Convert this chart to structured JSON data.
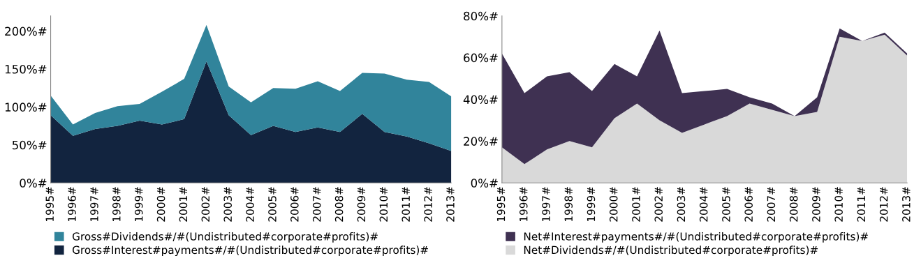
{
  "chart_data": [
    {
      "type": "area",
      "stacked": true,
      "legend": "bottom",
      "grid": false,
      "categories": [
        "1995#",
        "1996#",
        "1997#",
        "1998#",
        "1999#",
        "2000#",
        "2001#",
        "2002#",
        "2003#",
        "2004#",
        "2005#",
        "2006#",
        "2007#",
        "2008#",
        "2009#",
        "2010#",
        "2011#",
        "2012#",
        "2013#"
      ],
      "ylim": [
        0,
        220
      ],
      "yticks": [
        {
          "value": 0,
          "label": "0%#"
        },
        {
          "value": 50,
          "label": "50%#"
        },
        {
          "value": 100,
          "label": "100%#"
        },
        {
          "value": 150,
          "label": "150%#"
        },
        {
          "value": 200,
          "label": "200%#"
        }
      ],
      "series": [
        {
          "name": "Gross#Interest#payments#/#(Undistributed#corporate#profits)#",
          "color": "#12243f",
          "values": [
            89,
            62,
            71,
            75,
            82,
            77,
            84,
            160,
            89,
            63,
            75,
            67,
            73,
            67,
            91,
            67,
            61,
            52,
            42
          ]
        },
        {
          "name": "Gross#Dividends#/#(Undistributed#corporate#profits)#",
          "color": "#31849b",
          "values": [
            26,
            15,
            21,
            26,
            22,
            43,
            53,
            48,
            38,
            43,
            50,
            57,
            61,
            54,
            54,
            77,
            75,
            81,
            72
          ]
        }
      ]
    },
    {
      "type": "area",
      "stacked": true,
      "legend": "bottom",
      "grid": false,
      "categories": [
        "1995#",
        "1996#",
        "1997#",
        "1998#",
        "1999#",
        "2000#",
        "2001#",
        "2002#",
        "2003#",
        "2004#",
        "2005#",
        "2006#",
        "2007#",
        "2008#",
        "2009#",
        "2010#",
        "2011#",
        "2012#",
        "2013#"
      ],
      "ylim": [
        0,
        80
      ],
      "yticks": [
        {
          "value": 0,
          "label": "0%#"
        },
        {
          "value": 20,
          "label": "20%#"
        },
        {
          "value": 40,
          "label": "40%#"
        },
        {
          "value": 60,
          "label": "60%#"
        },
        {
          "value": 80,
          "label": "80%#"
        }
      ],
      "series": [
        {
          "name": "Net#Dividends#/#(Undistributed#corporate#profits)#",
          "color": "#d9d9d9",
          "values": [
            17,
            9,
            16,
            20,
            17,
            31,
            38,
            30,
            24,
            28,
            32,
            38,
            35,
            32,
            34,
            70,
            68,
            71,
            61
          ]
        },
        {
          "name": "Net#Interest#payments#/#(Undistributed#corporate#profits)#",
          "color": "#3f3152",
          "values": [
            45,
            34,
            35,
            33,
            27,
            26,
            13,
            43,
            19,
            16,
            13,
            3,
            3,
            0,
            7,
            4,
            0,
            1,
            1
          ]
        }
      ]
    }
  ]
}
